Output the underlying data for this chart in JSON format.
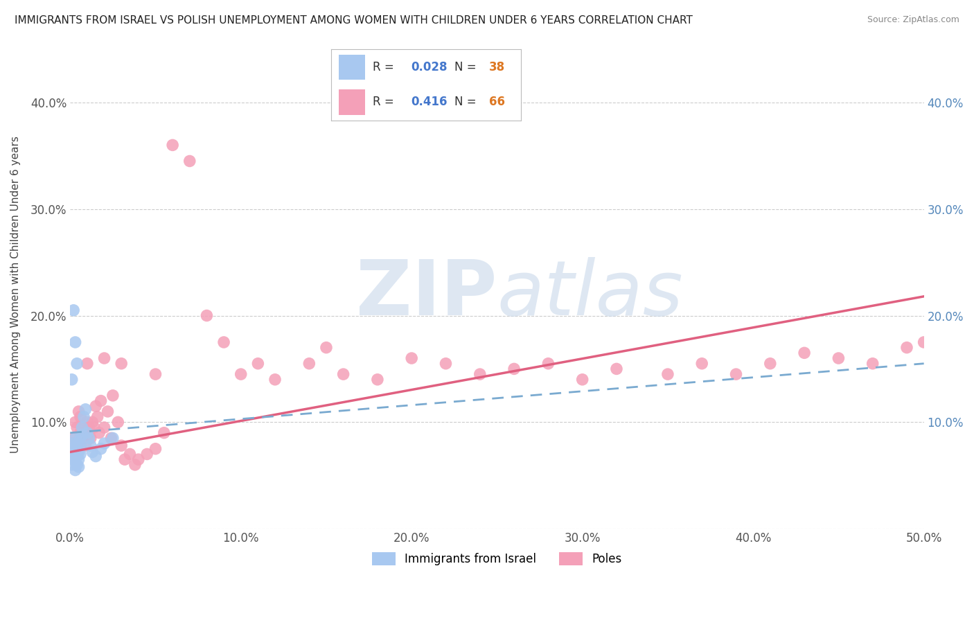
{
  "title": "IMMIGRANTS FROM ISRAEL VS POLISH UNEMPLOYMENT AMONG WOMEN WITH CHILDREN UNDER 6 YEARS CORRELATION CHART",
  "source": "Source: ZipAtlas.com",
  "xlim": [
    0.0,
    0.5
  ],
  "ylim": [
    0.0,
    0.44
  ],
  "legend_blue_label": "Immigrants from Israel",
  "legend_pink_label": "Poles",
  "legend_blue_R": "0.028",
  "legend_blue_N": "38",
  "legend_pink_R": "0.416",
  "legend_pink_N": "66",
  "blue_color": "#a8c8f0",
  "pink_color": "#f4a0b8",
  "blue_line_color": "#7aaad0",
  "pink_line_color": "#e06080",
  "right_axis_color": "#5588bb",
  "text_blue_color": "#4477cc",
  "text_orange_color": "#dd7722",
  "watermark_color": "#c8d8ea",
  "background_color": "#ffffff",
  "grid_color": "#cccccc",
  "blue_scatter_x": [
    0.001,
    0.001,
    0.001,
    0.002,
    0.002,
    0.002,
    0.002,
    0.003,
    0.003,
    0.003,
    0.003,
    0.004,
    0.004,
    0.004,
    0.004,
    0.005,
    0.005,
    0.005,
    0.005,
    0.006,
    0.006,
    0.006,
    0.007,
    0.007,
    0.008,
    0.009,
    0.01,
    0.011,
    0.012,
    0.013,
    0.015,
    0.018,
    0.02,
    0.025,
    0.002,
    0.003,
    0.004,
    0.001
  ],
  "blue_scatter_y": [
    0.07,
    0.065,
    0.06,
    0.075,
    0.08,
    0.068,
    0.072,
    0.085,
    0.078,
    0.065,
    0.055,
    0.07,
    0.075,
    0.06,
    0.068,
    0.08,
    0.072,
    0.065,
    0.058,
    0.085,
    0.078,
    0.07,
    0.095,
    0.088,
    0.105,
    0.112,
    0.09,
    0.085,
    0.078,
    0.072,
    0.068,
    0.075,
    0.08,
    0.085,
    0.205,
    0.175,
    0.155,
    0.14
  ],
  "pink_scatter_x": [
    0.001,
    0.002,
    0.003,
    0.004,
    0.004,
    0.005,
    0.005,
    0.006,
    0.006,
    0.007,
    0.008,
    0.009,
    0.01,
    0.01,
    0.011,
    0.012,
    0.013,
    0.014,
    0.015,
    0.016,
    0.017,
    0.018,
    0.02,
    0.022,
    0.024,
    0.025,
    0.028,
    0.03,
    0.032,
    0.035,
    0.038,
    0.04,
    0.045,
    0.05,
    0.055,
    0.06,
    0.07,
    0.08,
    0.09,
    0.1,
    0.11,
    0.12,
    0.14,
    0.15,
    0.16,
    0.18,
    0.2,
    0.22,
    0.24,
    0.26,
    0.28,
    0.3,
    0.32,
    0.35,
    0.37,
    0.39,
    0.41,
    0.43,
    0.45,
    0.47,
    0.49,
    0.5,
    0.01,
    0.02,
    0.03,
    0.05
  ],
  "pink_scatter_y": [
    0.08,
    0.085,
    0.1,
    0.078,
    0.095,
    0.082,
    0.11,
    0.09,
    0.105,
    0.085,
    0.095,
    0.078,
    0.088,
    0.1,
    0.095,
    0.085,
    0.1,
    0.095,
    0.115,
    0.105,
    0.09,
    0.12,
    0.095,
    0.11,
    0.085,
    0.125,
    0.1,
    0.078,
    0.065,
    0.07,
    0.06,
    0.065,
    0.07,
    0.075,
    0.09,
    0.36,
    0.345,
    0.2,
    0.175,
    0.145,
    0.155,
    0.14,
    0.155,
    0.17,
    0.145,
    0.14,
    0.16,
    0.155,
    0.145,
    0.15,
    0.155,
    0.14,
    0.15,
    0.145,
    0.155,
    0.145,
    0.155,
    0.165,
    0.16,
    0.155,
    0.17,
    0.175,
    0.155,
    0.16,
    0.155,
    0.145
  ]
}
